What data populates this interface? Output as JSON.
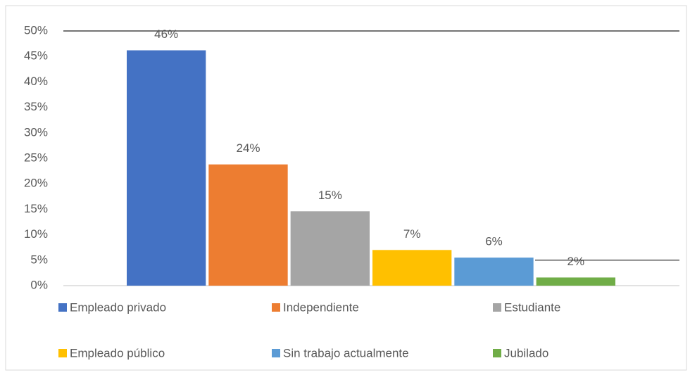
{
  "chart_data": {
    "type": "bar",
    "categories": [
      null
    ],
    "series": [
      {
        "name": "Empleado privado",
        "color": "#4472c4",
        "values": [
          46.2
        ],
        "value_labels": [
          "46%"
        ]
      },
      {
        "name": "Independiente",
        "color": "#ed7d31",
        "values": [
          23.8
        ],
        "value_labels": [
          "24%"
        ]
      },
      {
        "name": "Estudiante",
        "color": "#a5a5a5",
        "values": [
          14.6
        ],
        "value_labels": [
          "15%"
        ]
      },
      {
        "name": "Empleado público",
        "color": "#ffc000",
        "values": [
          7.0
        ],
        "value_labels": [
          "7%"
        ]
      },
      {
        "name": "Sin trabajo actualmente",
        "color": "#5b9bd5",
        "values": [
          5.5
        ],
        "value_labels": [
          "6%"
        ]
      },
      {
        "name": "Jubilado",
        "color": "#70ad47",
        "values": [
          1.6
        ],
        "value_labels": [
          "2%"
        ]
      }
    ],
    "ylim": [
      0,
      50
    ],
    "yticks": [
      {
        "value": 0,
        "label": "0%"
      },
      {
        "value": 5,
        "label": "5%"
      },
      {
        "value": 10,
        "label": "10%"
      },
      {
        "value": 15,
        "label": "15%"
      },
      {
        "value": 20,
        "label": "20%"
      },
      {
        "value": 25,
        "label": "25%"
      },
      {
        "value": 30,
        "label": "30%"
      },
      {
        "value": 35,
        "label": "35%"
      },
      {
        "value": 40,
        "label": "40%"
      },
      {
        "value": 45,
        "label": "45%"
      },
      {
        "value": 50,
        "label": "50%"
      }
    ],
    "legend": "bottom"
  }
}
